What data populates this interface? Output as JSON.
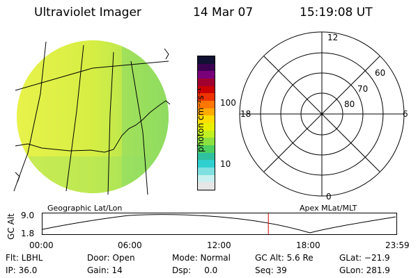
{
  "header": {
    "instrument": "Ultraviolet Imager",
    "date": "14 Mar 07",
    "time": "15:19:08 UT"
  },
  "colorbar": {
    "unit_label": "photon cm⁻²s⁻¹",
    "ticks": [
      "100",
      "10"
    ],
    "colors": [
      "#111133",
      "#3b0050",
      "#7a007a",
      "#a00030",
      "#cc0000",
      "#ee3300",
      "#ff7700",
      "#ffaa00",
      "#ffdd00",
      "#e8f000",
      "#c0f020",
      "#8ce040",
      "#4ed060",
      "#2fc0a0",
      "#30d0d0",
      "#80e0e0",
      "#c8f0f0",
      "#e6e6e6"
    ]
  },
  "polar_grid": {
    "mlt_labels": [
      "12",
      "18",
      "6",
      "0"
    ],
    "lat_labels": [
      "60",
      "70",
      "80"
    ]
  },
  "strip": {
    "left_label": "Geographic Lat/Lon",
    "right_label": "Apex MLat/MLT",
    "y_axis_label": "GC Alt",
    "y_ticks": [
      "9.0",
      "1.8"
    ],
    "x_ticks": [
      "00:00",
      "06:00",
      "12:00",
      "18:00",
      "23:59"
    ],
    "current_time_fraction": 0.638
  },
  "status": {
    "flt": "Flt: LBHL",
    "ip": "IP: 36.0",
    "door": "Door: Open",
    "gain": "Gain: 14",
    "mode": "Mode: Normal",
    "dsp": "Dsp:     0.0",
    "gc_alt": "GC Alt: 5.6 Re",
    "seq": "Seq: 39",
    "glat": "GLat: −21.9",
    "glon": "GLon: 281.9"
  }
}
